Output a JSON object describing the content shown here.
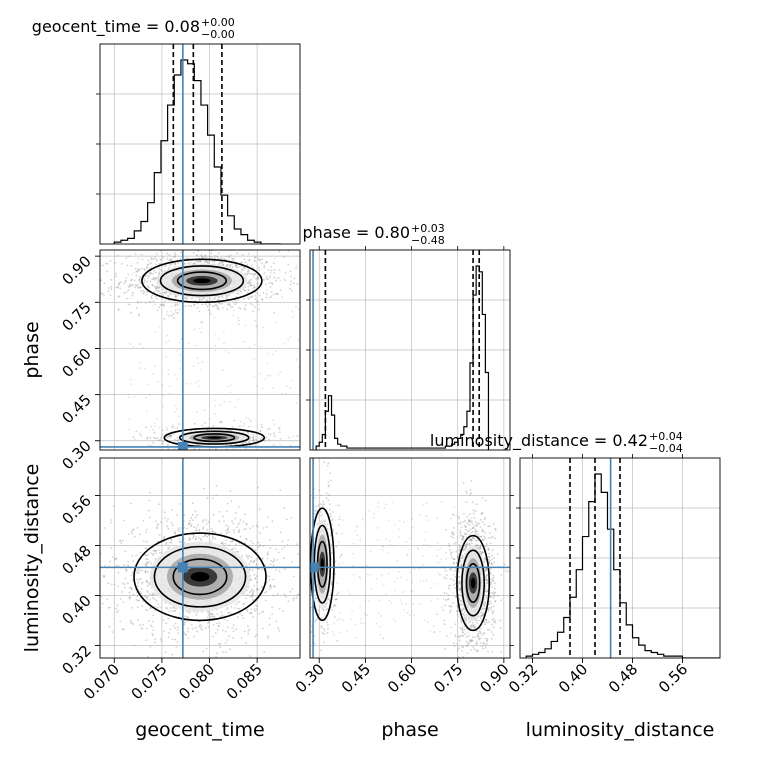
{
  "chart_data": {
    "type": "corner",
    "parameters": [
      {
        "name": "geocent_time",
        "label": "geocent_time",
        "range": [
          0.0685,
          0.0895
        ],
        "ticks": [
          "0.070",
          "0.075",
          "0.080",
          "0.085"
        ],
        "tick_values": [
          0.07,
          0.075,
          0.08,
          0.085
        ],
        "truth": 0.0772,
        "title": {
          "text": "geocent_time = 0.08",
          "sup": "+0.00",
          "sub": "−0.00"
        },
        "quantile_lines": [
          0.0762,
          0.0783,
          0.0813
        ]
      },
      {
        "name": "phase",
        "label": "phase",
        "range": [
          0.27,
          0.92
        ],
        "ticks": [
          "0.30",
          "0.45",
          "0.60",
          "0.75",
          "0.90"
        ],
        "tick_values": [
          0.3,
          0.45,
          0.6,
          0.75,
          0.9
        ],
        "truth": 0.28,
        "title": {
          "text": "phase = 0.80",
          "sup": "+0.03",
          "sub": "−0.48"
        },
        "quantile_lines": [
          0.32,
          0.8,
          0.82
        ]
      },
      {
        "name": "luminosity_distance",
        "label": "luminosity_distance",
        "range": [
          0.3,
          0.62
        ],
        "ticks": [
          "0.32",
          "0.40",
          "0.48",
          "0.56"
        ],
        "tick_values": [
          0.32,
          0.4,
          0.48,
          0.56
        ],
        "truth": 0.445,
        "title": {
          "text": "luminosity_distance = 0.42",
          "sup": "+0.04",
          "sub": "−0.04"
        },
        "quantile_lines": [
          0.38,
          0.42,
          0.46
        ]
      }
    ],
    "histograms": {
      "geocent_time": {
        "bin_edges": [
          0.07,
          0.0707,
          0.0714,
          0.0721,
          0.0728,
          0.0735,
          0.0742,
          0.0749,
          0.0756,
          0.0763,
          0.077,
          0.0777,
          0.0784,
          0.0791,
          0.0798,
          0.0805,
          0.0812,
          0.0819,
          0.0826,
          0.0833,
          0.084,
          0.0847,
          0.0854,
          0.0861,
          0.0868,
          0.0875
        ],
        "counts": [
          1,
          2,
          3,
          7,
          12,
          22,
          38,
          55,
          74,
          90,
          98,
          96,
          87,
          74,
          58,
          41,
          26,
          15,
          8,
          5,
          2,
          1,
          0,
          0,
          0
        ]
      },
      "phase": {
        "bin_edges": [
          0.29,
          0.3,
          0.31,
          0.32,
          0.33,
          0.34,
          0.35,
          0.36,
          0.37,
          0.38,
          0.39,
          0.4,
          0.41,
          0.42,
          0.43,
          0.44,
          0.45,
          0.46,
          0.47,
          0.48,
          0.49,
          0.5,
          0.51,
          0.52,
          0.53,
          0.54,
          0.55,
          0.56,
          0.57,
          0.58,
          0.59,
          0.6,
          0.61,
          0.62,
          0.63,
          0.64,
          0.65,
          0.66,
          0.67,
          0.68,
          0.69,
          0.7,
          0.71,
          0.72,
          0.73,
          0.74,
          0.75,
          0.76,
          0.77,
          0.78,
          0.79,
          0.8,
          0.81,
          0.82,
          0.83,
          0.84,
          0.85
        ],
        "counts": [
          2,
          4,
          8,
          20,
          28,
          18,
          6,
          3,
          2,
          2,
          1,
          1,
          1,
          1,
          1,
          1,
          1,
          1,
          1,
          1,
          1,
          1,
          1,
          1,
          1,
          1,
          1,
          1,
          1,
          1,
          1,
          1,
          1,
          1,
          1,
          1,
          1,
          1,
          1,
          1,
          1,
          1,
          2,
          2,
          3,
          4,
          6,
          8,
          12,
          20,
          45,
          80,
          95,
          92,
          70,
          40
        ]
      },
      "luminosity_distance": {
        "bin_edges": [
          0.31,
          0.32,
          0.33,
          0.34,
          0.35,
          0.36,
          0.37,
          0.38,
          0.39,
          0.4,
          0.41,
          0.42,
          0.43,
          0.44,
          0.45,
          0.46,
          0.47,
          0.48,
          0.49,
          0.5,
          0.51,
          0.52,
          0.53,
          0.54,
          0.55,
          0.56,
          0.57,
          0.58,
          0.59,
          0.6,
          0.61,
          0.62
        ],
        "counts": [
          1,
          2,
          3,
          5,
          9,
          14,
          22,
          33,
          48,
          66,
          85,
          100,
          90,
          70,
          48,
          30,
          18,
          11,
          7,
          4,
          3,
          2,
          1,
          1,
          1,
          0,
          0,
          0,
          0,
          0,
          0
        ]
      }
    },
    "modes_2d": {
      "geocent_time|phase": [
        {
          "cx": 0.0792,
          "cy": 0.82,
          "sx": 0.003,
          "sy": 0.035,
          "w": 0.78
        },
        {
          "cx": 0.0805,
          "cy": 0.31,
          "sx": 0.0025,
          "sy": 0.015,
          "w": 0.22
        }
      ],
      "geocent_time|luminosity_distance": [
        {
          "cx": 0.079,
          "cy": 0.43,
          "sx": 0.0033,
          "sy": 0.035,
          "w": 1.0
        }
      ],
      "phase|luminosity_distance": [
        {
          "cx": 0.8,
          "cy": 0.42,
          "sx": 0.025,
          "sy": 0.038,
          "w": 0.78
        },
        {
          "cx": 0.31,
          "cy": 0.45,
          "sx": 0.018,
          "sy": 0.045,
          "w": 0.22
        }
      ]
    },
    "truth_color": "#4682b4",
    "grid": true
  }
}
